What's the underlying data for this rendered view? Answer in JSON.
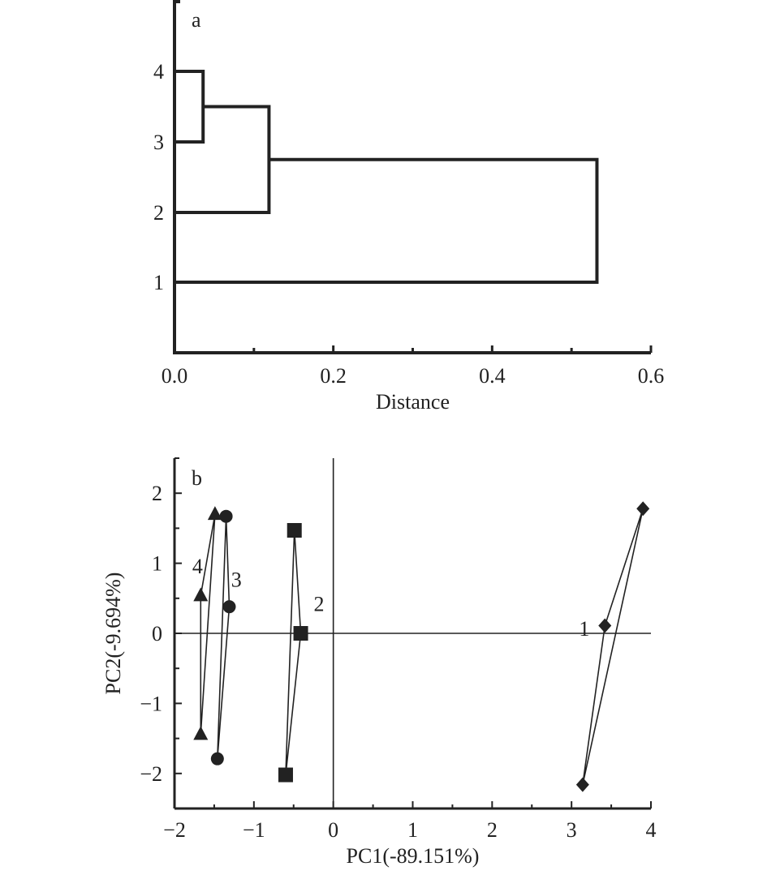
{
  "chart_data": [
    {
      "type": "dendrogram",
      "panel_label": "a",
      "xlabel": "Distance",
      "xlim": [
        0,
        0.6
      ],
      "xticks": [
        0.0,
        0.2,
        0.4,
        0.6
      ],
      "xtick_labels": [
        "0.0",
        "0.2",
        "0.4",
        "0.6"
      ],
      "minor_xticks": [
        0.1,
        0.3,
        0.5
      ],
      "leaves": [
        "1",
        "2",
        "3",
        "4"
      ],
      "merges": [
        {
          "a": "4",
          "b": "3",
          "distance": 0.036
        },
        {
          "a": "4-3",
          "b": "2",
          "distance": 0.119
        },
        {
          "a": "4-3-2",
          "b": "1",
          "distance": 0.532
        }
      ]
    },
    {
      "type": "scatter",
      "panel_label": "b",
      "xlabel": "PC1(-89.151%)",
      "ylabel": "PC2(-9.694%)",
      "xlim": [
        -2,
        4
      ],
      "ylim": [
        -2.5,
        2.5
      ],
      "xticks": [
        -2,
        -1,
        0,
        1,
        2,
        3,
        4
      ],
      "xtick_labels": [
        "−2",
        "−1",
        "0",
        "1",
        "2",
        "3",
        "4"
      ],
      "yticks": [
        -2,
        -1,
        0,
        1,
        2
      ],
      "ytick_labels": [
        "−2",
        "−1",
        "0",
        "1",
        "2"
      ],
      "series": [
        {
          "name": "1",
          "marker": "diamond",
          "points": [
            [
              3.9,
              1.78
            ],
            [
              3.42,
              0.11
            ],
            [
              3.14,
              -2.16
            ]
          ],
          "label_at": [
            3.16,
            0.07
          ]
        },
        {
          "name": "2",
          "marker": "square",
          "points": [
            [
              -0.49,
              1.47
            ],
            [
              -0.41,
              0.0
            ],
            [
              -0.6,
              -2.02
            ]
          ],
          "label_at": [
            -0.18,
            0.42
          ]
        },
        {
          "name": "3",
          "marker": "circle",
          "points": [
            [
              -1.35,
              1.67
            ],
            [
              -1.31,
              0.38
            ],
            [
              -1.46,
              -1.79
            ]
          ],
          "label_at": [
            -1.22,
            0.77
          ]
        },
        {
          "name": "4",
          "marker": "triangle",
          "points": [
            [
              -1.49,
              1.7
            ],
            [
              -1.67,
              0.54
            ],
            [
              -1.67,
              -1.44
            ]
          ],
          "label_at": [
            -1.71,
            0.96
          ]
        }
      ]
    }
  ]
}
